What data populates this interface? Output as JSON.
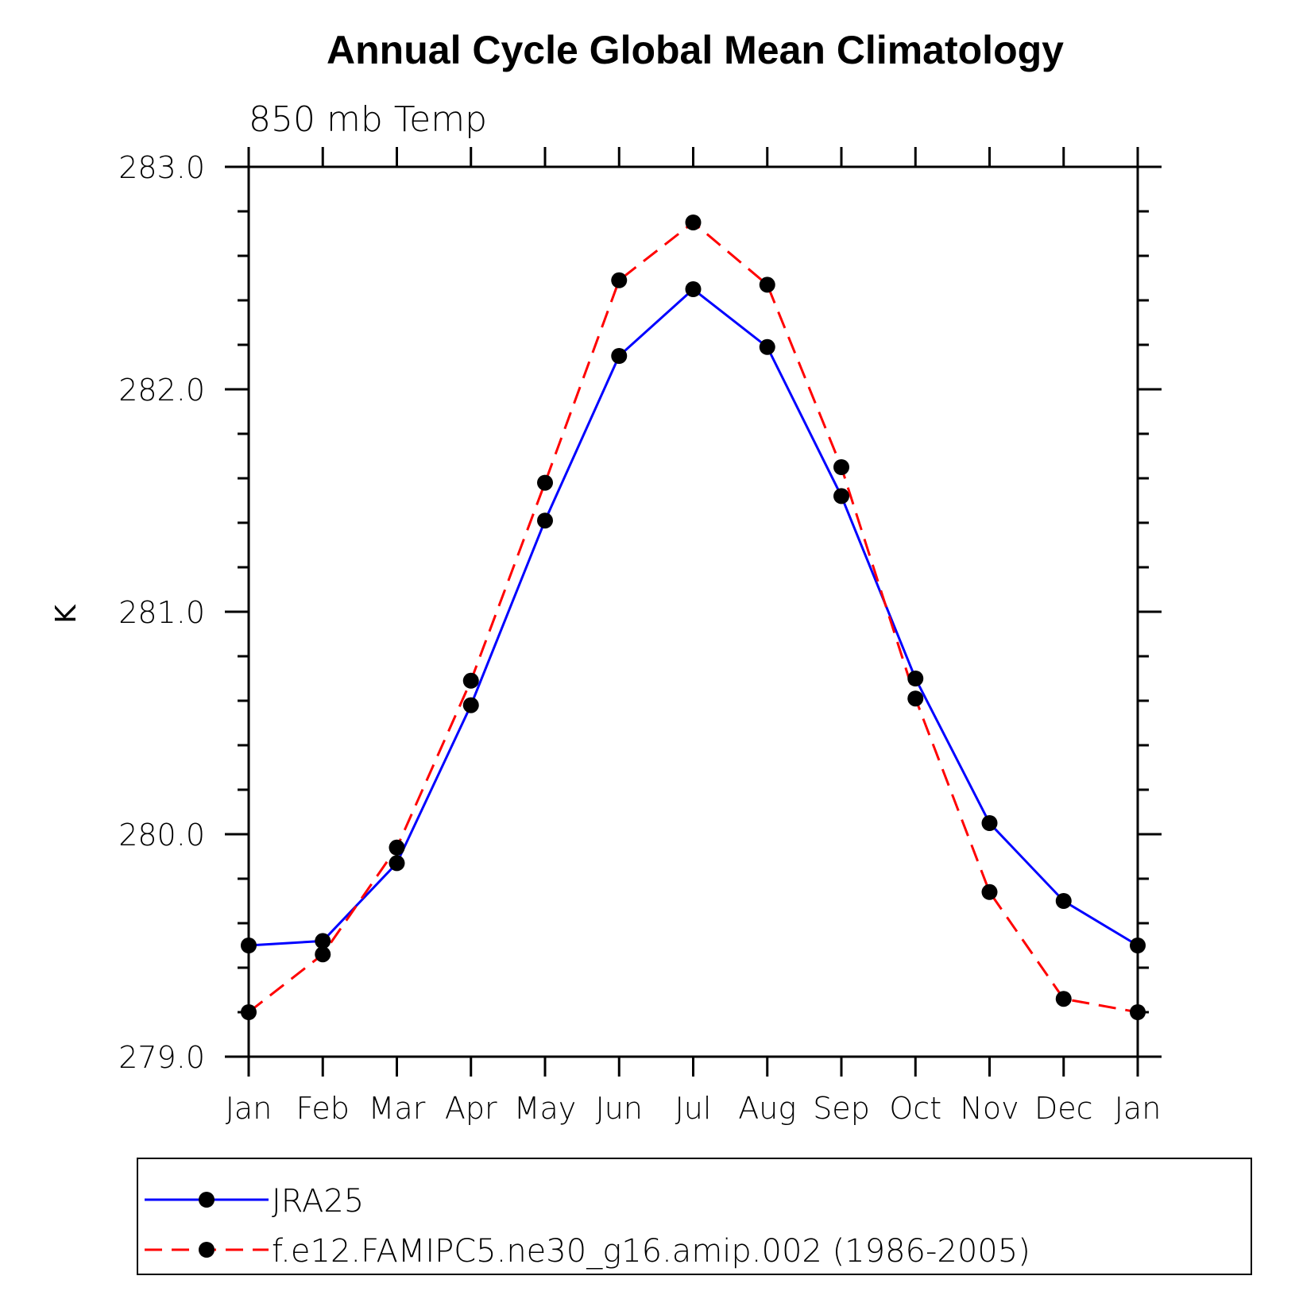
{
  "chart_data": {
    "type": "line",
    "title": "Annual Cycle Global Mean Climatology",
    "subtitle": "850 mb Temp",
    "ylabel": "K",
    "xlabel": "",
    "ylim": [
      279.0,
      283.0
    ],
    "yticks": [
      "283.0",
      "282.0",
      "281.0",
      "280.0",
      "279.0"
    ],
    "yticks_values": [
      283.0,
      282.0,
      281.0,
      280.0,
      279.0
    ],
    "categories": [
      "Jan",
      "Feb",
      "Mar",
      "Apr",
      "May",
      "Jun",
      "Jul",
      "Aug",
      "Sep",
      "Oct",
      "Nov",
      "Dec",
      "Jan"
    ],
    "grid": false,
    "legend_position": "bottom",
    "series": [
      {
        "name": "JRA25",
        "color": "#0000ff",
        "style": "solid",
        "values": [
          279.5,
          279.52,
          279.87,
          280.58,
          281.41,
          282.15,
          282.45,
          282.19,
          281.52,
          280.7,
          280.05,
          279.7,
          279.5
        ]
      },
      {
        "name": "f.e12.FAMIPC5.ne30_g16.amip.002 (1986-2005)",
        "color": "#ff0000",
        "style": "dashed",
        "values": [
          279.2,
          279.46,
          279.94,
          280.69,
          281.58,
          282.49,
          282.75,
          282.47,
          281.65,
          280.61,
          279.74,
          279.26,
          279.2
        ]
      }
    ]
  }
}
